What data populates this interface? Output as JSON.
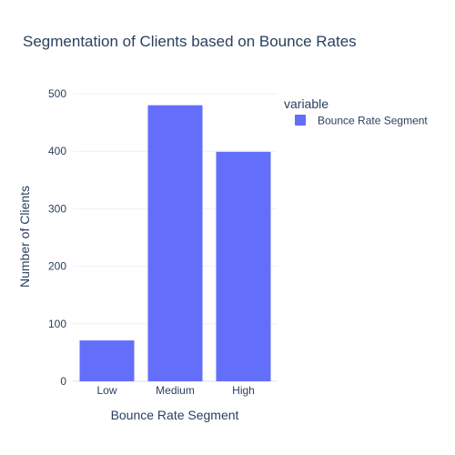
{
  "chart_data": {
    "type": "bar",
    "title": "Segmentation of Clients based on Bounce Rates",
    "xlabel": "Bounce Rate Segment",
    "ylabel": "Number of Clients",
    "categories": [
      "Low",
      "Medium",
      "High"
    ],
    "series": [
      {
        "name": "Bounce Rate Segment",
        "values": [
          71,
          480,
          399
        ],
        "color": "#636efa"
      }
    ],
    "ylim": [
      0,
      500
    ],
    "yticks": [
      0,
      100,
      200,
      300,
      400,
      500
    ],
    "legend": {
      "title": "variable",
      "placement": "top-right"
    },
    "grid": true
  }
}
